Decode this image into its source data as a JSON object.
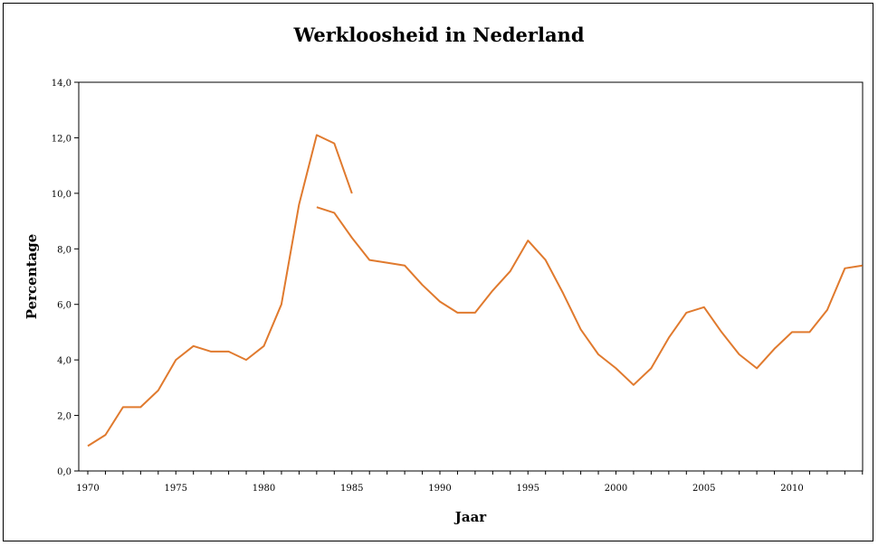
{
  "chart_data": {
    "type": "line",
    "title": "Werkloosheid in Nederland",
    "xlabel": "Jaar",
    "ylabel": "Percentage",
    "xlim": [
      1970,
      2015
    ],
    "ylim": [
      0,
      14
    ],
    "x_ticks": [
      "1970",
      "1975",
      "1980",
      "1985",
      "1990",
      "1995",
      "2000",
      "2005",
      "2010"
    ],
    "y_ticks": [
      "0,0",
      "2,0",
      "4,0",
      "6,0",
      "8,0",
      "10,0",
      "12,0",
      "14,0"
    ],
    "grid": false,
    "legend": "none",
    "color": "#e07a2e",
    "series": [
      {
        "x": [
          1970,
          1971,
          1972,
          1973,
          1974,
          1975,
          1976,
          1977,
          1978,
          1979,
          1980,
          1981,
          1982,
          1983,
          1984,
          1985
        ],
        "values": [
          0.9,
          1.3,
          2.3,
          2.3,
          2.9,
          4.0,
          4.5,
          4.3,
          4.3,
          4.0,
          4.5,
          6.0,
          9.6,
          12.1,
          11.8,
          10.0
        ]
      },
      {
        "x": [
          1983,
          1984,
          1985,
          1986,
          1987,
          1988,
          1989,
          1990,
          1991,
          1992,
          1993,
          1994,
          1995,
          1996,
          1997,
          1998,
          1999,
          2000,
          2001,
          2002,
          2003,
          2004,
          2005,
          2006,
          2007,
          2008,
          2009,
          2010,
          2011,
          2012,
          2013,
          2014
        ],
        "values": [
          9.5,
          9.3,
          8.4,
          7.6,
          7.5,
          7.4,
          6.7,
          6.1,
          5.7,
          5.7,
          6.5,
          7.2,
          8.3,
          7.6,
          6.4,
          5.1,
          4.2,
          3.7,
          3.1,
          3.7,
          4.8,
          5.7,
          5.9,
          5.0,
          4.2,
          3.7,
          4.4,
          5.0,
          5.0,
          5.8,
          7.3,
          7.4
        ]
      }
    ]
  }
}
